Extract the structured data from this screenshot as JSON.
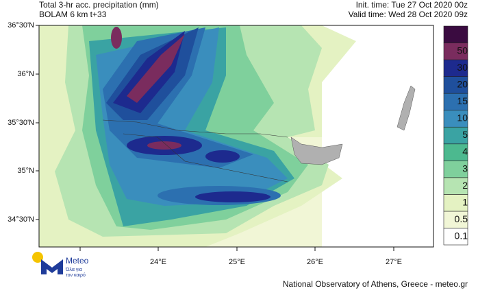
{
  "header": {
    "title": "Total 3-hr acc. precipitation (mm)",
    "model": "BOLAM 6 km t+33",
    "init_time": "Init. time: Tue 27 Oct 2020 00z",
    "valid_time": "Valid time: Wed 28 Oct 2020 09z"
  },
  "map": {
    "lat_labels": [
      "36°30'N",
      "36°N",
      "35°30'N",
      "35°N",
      "34°30'N"
    ],
    "lon_labels": [
      "24°E",
      "25°E",
      "26°E",
      "27°E"
    ]
  },
  "colorbar": {
    "levels": [
      0.1,
      0.5,
      1,
      2,
      3,
      4,
      5,
      10,
      15,
      20,
      30,
      50
    ],
    "colors": [
      "#ffffff",
      "#f1f6d6",
      "#e4f2c2",
      "#b6e4b2",
      "#7fd09c",
      "#4cb98f",
      "#3aa3a3",
      "#3a8ebd",
      "#2c70b0",
      "#1f4f9c",
      "#1d2a8e",
      "#7a2c5e",
      "#3a0b40"
    ]
  },
  "logo": {
    "name": "Meteo",
    "tagline_1": "Όλα για",
    "tagline_2": "τον καιρό"
  },
  "footer": "National Observatory of Athens, Greece - meteo.gr"
}
